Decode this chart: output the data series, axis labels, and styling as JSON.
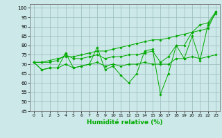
{
  "title": "",
  "xlabel": "Humidité relative (%)",
  "ylabel": "",
  "bg_color": "#cce8e8",
  "grid_color": "#99bbbb",
  "line_color": "#00aa00",
  "xlim": [
    -0.5,
    23.5
  ],
  "ylim": [
    45,
    102
  ],
  "ytick_vals": [
    45,
    50,
    55,
    60,
    65,
    70,
    75,
    80,
    85,
    90,
    95,
    100
  ],
  "ytick_labels": [
    "45",
    "50",
    "55",
    "60",
    "65",
    "70",
    "75",
    "80",
    "85",
    "90",
    "95",
    "100"
  ],
  "xtick_vals": [
    0,
    1,
    2,
    3,
    4,
    5,
    6,
    7,
    8,
    9,
    10,
    11,
    12,
    13,
    14,
    15,
    16,
    17,
    18,
    19,
    20,
    21,
    22,
    23
  ],
  "xtick_labels": [
    "0",
    "1",
    "2",
    "3",
    "4",
    "5",
    "6",
    "7",
    "8",
    "9",
    "10",
    "11",
    "12",
    "13",
    "14",
    "15",
    "16",
    "17",
    "18",
    "19",
    "20",
    "21",
    "22",
    "23"
  ],
  "series": [
    [
      71,
      67,
      68,
      68,
      76,
      68,
      69,
      70,
      79,
      67,
      69,
      64,
      60,
      65,
      77,
      78,
      54,
      65,
      80,
      73,
      85,
      72,
      91,
      97
    ],
    [
      71,
      67,
      68,
      68,
      70,
      68,
      69,
      70,
      71,
      69,
      70,
      69,
      70,
      70,
      71,
      70,
      70,
      70,
      73,
      73,
      74,
      73,
      74,
      75
    ],
    [
      71,
      71,
      72,
      73,
      74,
      74,
      75,
      76,
      77,
      77,
      78,
      79,
      80,
      81,
      82,
      83,
      83,
      84,
      85,
      86,
      87,
      88,
      89,
      98
    ],
    [
      71,
      71,
      71,
      72,
      75,
      73,
      73,
      74,
      75,
      73,
      74,
      74,
      75,
      75,
      76,
      77,
      71,
      74,
      80,
      80,
      87,
      91,
      92,
      98
    ]
  ]
}
